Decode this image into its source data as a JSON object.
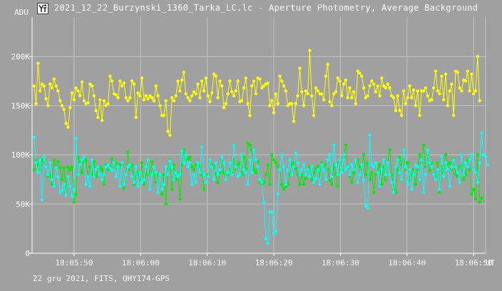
{
  "window": {
    "title": "2021_12_22_Burzynski_1360_Tarka_LC.lc - Aperture Photometry, Average Background",
    "icon": "app-icon"
  },
  "footer": "22 gru 2021, FITS, QHY174-GPS",
  "colors": {
    "background": "#a0a0a0",
    "grid": "#c3c3c3",
    "axis": "#ffffff",
    "series_yellow": "#ffff00",
    "series_green": "#00ee00",
    "series_cyan": "#00ffff"
  },
  "chart_data": {
    "type": "line",
    "title": "",
    "ylabel": "ADU",
    "xlabel": "UT",
    "ylim": [
      0,
      240000
    ],
    "xlim": [
      -6.3,
      61.8
    ],
    "grid": true,
    "x_ticks": [
      {
        "v": 0,
        "label": "18:05:50"
      },
      {
        "v": 10,
        "label": "18:06:00"
      },
      {
        "v": 20,
        "label": "18:06:10"
      },
      {
        "v": 30,
        "label": "18:06:20"
      },
      {
        "v": 40,
        "label": "18:06:30"
      },
      {
        "v": 50,
        "label": "18:06:40"
      },
      {
        "v": 60,
        "label": "18:06:50"
      }
    ],
    "y_ticks": [
      {
        "v": 0,
        "label": "0"
      },
      {
        "v": 50000,
        "label": "50K"
      },
      {
        "v": 100000,
        "label": "100K"
      },
      {
        "v": 150000,
        "label": "150K"
      },
      {
        "v": 200000,
        "label": "200K"
      }
    ],
    "x_start": -6.0,
    "x_step": 0.3,
    "series": [
      {
        "color": "#ffff00",
        "values": [
          170000,
          152000,
          193000,
          165000,
          172000,
          170000,
          157000,
          150000,
          172000,
          168000,
          177000,
          170000,
          165000,
          155000,
          150000,
          146000,
          132000,
          128000,
          148000,
          163000,
          156000,
          168000,
          165000,
          160000,
          174000,
          155000,
          152000,
          153000,
          172000,
          170000,
          160000,
          145000,
          138000,
          156000,
          135000,
          155000,
          150000,
          152000,
          180000,
          175000,
          162000,
          161000,
          158000,
          175000,
          170000,
          173000,
          158000,
          155000,
          158000,
          175000,
          172000,
          138000,
          163000,
          160000,
          178000,
          156000,
          160000,
          157000,
          160000,
          158000,
          155000,
          170000,
          160000,
          150000,
          140000,
          140000,
          155000,
          124000,
          120000,
          158000,
          155000,
          160000,
          175000,
          165000,
          176000,
          184000,
          162000,
          158000,
          155000,
          160000,
          164000,
          162000,
          172000,
          158000,
          175000,
          165000,
          178000,
          160000,
          154000,
          163000,
          182000,
          180000,
          158000,
          175000,
          170000,
          148000,
          152000,
          162000,
          175000,
          164000,
          160000,
          165000,
          175000,
          154000,
          155000,
          168000,
          178000,
          152000,
          140000,
          170000,
          175000,
          162000,
          178000,
          177000,
          168000,
          170000,
          172000,
          173000,
          150000,
          155000,
          143000,
          162000,
          152000,
          180000,
          175000,
          170000,
          165000,
          150000,
          152000,
          152000,
          134000,
          152000,
          160000,
          188000,
          164000,
          150000,
          165000,
          162000,
          206000,
          160000,
          140000,
          168000,
          165000,
          162000,
          162000,
          156000,
          180000,
          192000,
          154000,
          150000,
          162000,
          164000,
          178000,
          175000,
          160000,
          172000,
          176000,
          158000,
          168000,
          158000,
          164000,
          152000,
          185000,
          183000,
          180000,
          168000,
          158000,
          160000,
          170000,
          175000,
          172000,
          164000,
          170000,
          160000,
          178000,
          170000,
          168000,
          172000,
          168000,
          160000,
          158000,
          145000,
          160000,
          145000,
          140000,
          165000,
          152000,
          158000,
          170000,
          158000,
          166000,
          150000,
          165000,
          140000,
          165000,
          165000,
          168000,
          160000,
          155000,
          156000,
          168000,
          185000,
          165000,
          162000,
          180000,
          156000,
          182000,
          150000,
          165000,
          172000,
          140000,
          185000,
          184000,
          168000,
          165000,
          176000,
          175000,
          185000,
          165000,
          182000,
          162000,
          165000,
          200000,
          155000
        ]
      },
      {
        "color": "#00ee00",
        "values": [
          85000,
          95000,
          90000,
          85000,
          95000,
          93000,
          88000,
          78000,
          80000,
          70000,
          95000,
          88000,
          93000,
          87000,
          75000,
          87000,
          62000,
          88000,
          85000,
          88000,
          52000,
          60000,
          98000,
          93000,
          82000,
          93000,
          95000,
          78000,
          88000,
          80000,
          93000,
          78000,
          86000,
          88000,
          85000,
          70000,
          90000,
          85000,
          85000,
          96000,
          88000,
          92000,
          87000,
          90000,
          90000,
          66000,
          80000,
          103000,
          85000,
          90000,
          70000,
          80000,
          82000,
          75000,
          92000,
          70000,
          80000,
          95000,
          80000,
          93000,
          80000,
          72000,
          80000,
          80000,
          60000,
          80000,
          50000,
          85000,
          95000,
          65000,
          90000,
          75000,
          82000,
          55000,
          90000,
          105000,
          95000,
          96000,
          98000,
          88000,
          85000,
          90000,
          92000,
          88000,
          80000,
          65000,
          72000,
          80000,
          94000,
          90000,
          88000,
          80000,
          72000,
          82000,
          95000,
          82000,
          75000,
          80000,
          86000,
          82000,
          95000,
          85000,
          90000,
          92000,
          80000,
          98000,
          86000,
          112000,
          110000,
          105000,
          85000,
          82000,
          93000,
          72000,
          70000,
          72000,
          80000,
          90000,
          70000,
          100000,
          95000,
          92000,
          88000,
          85000,
          70000,
          65000,
          68000,
          70000,
          80000,
          90000,
          92000,
          86000,
          80000,
          70000,
          80000,
          70000,
          76000,
          84000,
          88000,
          75000,
          82000,
          86000,
          88000,
          78000,
          92000,
          85000,
          90000,
          85000,
          74000,
          70000,
          90000,
          80000,
          68000,
          92000,
          85000,
          98000,
          110000,
          86000,
          78000,
          72000,
          82000,
          90000,
          95000,
          88000,
          85000,
          100000,
          80000,
          92000,
          75000,
          82000,
          62000,
          80000,
          85000,
          90000,
          70000,
          88000,
          75000,
          92000,
          105000,
          80000,
          65000,
          62000,
          85000,
          98000,
          90000,
          95000,
          85000,
          92000,
          75000,
          80000,
          85000,
          70000,
          85000,
          100000,
          92000,
          110000,
          88000,
          100000,
          84000,
          92000,
          80000,
          78000,
          92000,
          62000,
          88000,
          82000,
          100000,
          90000,
          92000,
          85000,
          96000,
          80000,
          78000,
          88000,
          90000,
          75000,
          80000,
          95000,
          85000,
          60000,
          65000,
          55000,
          100000,
          52000,
          56000
        ]
      },
      {
        "color": "#00ffff",
        "values": [
          118000,
          92000,
          82000,
          95000,
          54000,
          98000,
          88000,
          80000,
          92000,
          75000,
          68000,
          87000,
          78000,
          62000,
          64000,
          70000,
          59000,
          78000,
          68000,
          58000,
          65000,
          117000,
          80000,
          90000,
          95000,
          98000,
          70000,
          78000,
          68000,
          95000,
          78000,
          85000,
          88000,
          80000,
          75000,
          80000,
          88000,
          90000,
          86000,
          84000,
          92000,
          78000,
          88000,
          68000,
          92000,
          70000,
          80000,
          88000,
          90000,
          78000,
          72000,
          88000,
          68000,
          82000,
          72000,
          75000,
          88000,
          95000,
          65000,
          80000,
          88000,
          82000,
          62000,
          80000,
          65000,
          70000,
          88000,
          80000,
          94000,
          88000,
          75000,
          82000,
          78000,
          80000,
          104000,
          92000,
          100000,
          88000,
          92000,
          70000,
          80000,
          72000,
          92000,
          82000,
          108000,
          80000,
          72000,
          78000,
          95000,
          88000,
          75000,
          92000,
          80000,
          85000,
          98000,
          92000,
          75000,
          82000,
          92000,
          80000,
          110000,
          88000,
          78000,
          80000,
          100000,
          85000,
          82000,
          70000,
          95000,
          82000,
          105000,
          95000,
          88000,
          75000,
          72000,
          52000,
          15000,
          10000,
          42000,
          42000,
          20000,
          22000,
          60000,
          85000,
          100000,
          88000,
          70000,
          85000,
          95000,
          80000,
          88000,
          102000,
          92000,
          80000,
          85000,
          90000,
          80000,
          85000,
          78000,
          88000,
          72000,
          76000,
          85000,
          70000,
          90000,
          85000,
          75000,
          95000,
          100000,
          78000,
          110000,
          90000,
          80000,
          95000,
          82000,
          100000,
          85000,
          88000,
          80000,
          90000,
          85000,
          95000,
          72000,
          80000,
          90000,
          75000,
          48000,
          46000,
          120000,
          90000,
          88000,
          92000,
          82000,
          68000,
          85000,
          95000,
          80000,
          92000,
          80000,
          72000,
          62000,
          88000,
          95000,
          82000,
          75000,
          105000,
          88000,
          70000,
          85000,
          65000,
          80000,
          90000,
          88000,
          75000,
          95000,
          62000,
          80000,
          105000,
          92000,
          88000,
          80000,
          75000,
          85000,
          65000,
          98000,
          78000,
          92000,
          85000,
          68000,
          88000,
          95000,
          88000,
          82000,
          72000,
          100000,
          80000,
          92000,
          88000,
          95000,
          100000,
          85000,
          82000,
          72000,
          92000,
          122000,
          100000,
          98000,
          90000
        ]
      }
    ]
  }
}
